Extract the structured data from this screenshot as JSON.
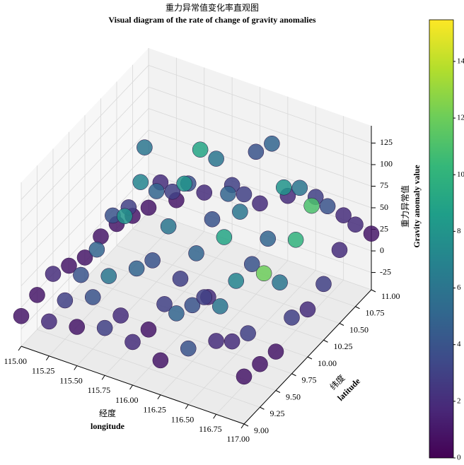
{
  "chart_data": {
    "type": "scatter3d",
    "title": "重力异常值变化率直观图",
    "subtitle": "Visual diagram of the rate of change of gravity anomalies",
    "xlabel_cn": "经度",
    "xlabel": "longitude",
    "ylabel_cn": "纬度",
    "ylabel": "latitude",
    "zlabel_cn": "重力异常值",
    "zlabel": "Gravity anomaly value",
    "colormap": "viridis",
    "x": [
      115,
      115.25,
      115.5,
      115.75,
      116,
      116.25,
      116.5,
      116.75,
      117
    ],
    "y": [
      9,
      9.25,
      9.5,
      9.75,
      10,
      10.25,
      10.5,
      10.75,
      11
    ],
    "z": [
      [
        -10,
        -5,
        0,
        10,
        5,
        -5,
        20,
        40,
        10
      ],
      [
        -5,
        0,
        15,
        5,
        0,
        30,
        60,
        20,
        5
      ],
      [
        0,
        10,
        20,
        40,
        10,
        20,
        30,
        10,
        0
      ],
      [
        -10,
        20,
        70,
        30,
        20,
        10,
        40,
        60,
        20
      ],
      [
        -20,
        40,
        90,
        50,
        30,
        60,
        40,
        30,
        10
      ],
      [
        -15,
        30,
        60,
        80,
        50,
        70,
        50,
        60,
        20
      ],
      [
        -20,
        80,
        40,
        100,
        60,
        120,
        90,
        80,
        40
      ],
      [
        -30,
        20,
        30,
        70,
        40,
        110,
        70,
        60,
        50
      ],
      [
        -40,
        -20,
        0,
        20,
        10,
        30,
        40,
        30,
        20
      ]
    ],
    "c": [
      [
        1,
        2,
        1,
        3,
        2,
        1,
        4,
        2,
        1
      ],
      [
        1,
        3,
        4,
        2,
        1,
        5,
        3,
        2,
        1
      ],
      [
        2,
        4,
        6,
        5,
        3,
        4,
        6,
        3,
        1
      ],
      [
        1,
        5,
        8,
        4,
        3,
        2,
        7,
        12,
        3
      ],
      [
        1,
        4,
        7,
        6,
        5,
        9,
        4,
        6,
        2
      ],
      [
        1,
        3,
        5,
        8,
        4,
        6,
        5,
        10,
        3
      ],
      [
        1,
        6,
        3,
        9,
        5,
        4,
        8,
        11,
        2
      ],
      [
        1,
        2,
        4,
        6,
        3,
        5,
        6,
        4,
        2
      ],
      [
        1,
        1,
        2,
        3,
        2,
        2,
        3,
        2,
        1
      ]
    ],
    "xlim": [
      115,
      117
    ],
    "xticks": [
      {
        "value": 115,
        "label": "115.00"
      },
      {
        "value": 115.25,
        "label": "115.25"
      },
      {
        "value": 115.5,
        "label": "115.50"
      },
      {
        "value": 115.75,
        "label": "115.75"
      },
      {
        "value": 116,
        "label": "116.00"
      },
      {
        "value": 116.25,
        "label": "116.25"
      },
      {
        "value": 116.5,
        "label": "116.50"
      },
      {
        "value": 116.75,
        "label": "116.75"
      },
      {
        "value": 117,
        "label": "117.00"
      }
    ],
    "ylim": [
      9,
      11
    ],
    "yticks": [
      {
        "value": 9,
        "label": "9.00"
      },
      {
        "value": 9.25,
        "label": "9.25"
      },
      {
        "value": 9.5,
        "label": "9.50"
      },
      {
        "value": 9.75,
        "label": "9.75"
      },
      {
        "value": 10,
        "label": "10.00"
      },
      {
        "value": 10.25,
        "label": "10.25"
      },
      {
        "value": 10.5,
        "label": "10.50"
      },
      {
        "value": 10.75,
        "label": "10.75"
      },
      {
        "value": 11,
        "label": "11.00"
      }
    ],
    "zlim": [
      -45,
      145
    ],
    "zticks": [
      -25,
      0,
      25,
      50,
      75,
      100,
      125
    ],
    "clim": [
      0,
      15.47
    ],
    "cticks": [
      0,
      2,
      4,
      6,
      8,
      10,
      12,
      14
    ],
    "grid": true
  }
}
